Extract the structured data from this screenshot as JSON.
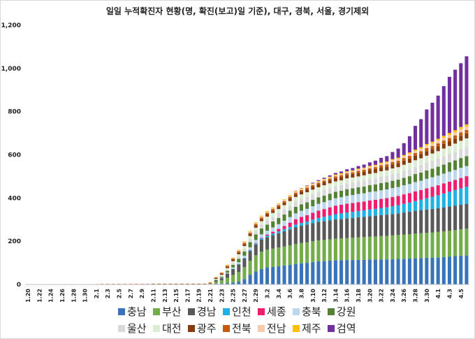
{
  "chart_data": {
    "type": "bar",
    "stacked": true,
    "title": "일일 누적확진자 현황(명, 확진(보고)일 기준), 대구, 경북, 서울, 경기제외",
    "ylim": [
      0,
      1200
    ],
    "yticks": [
      0,
      200,
      400,
      600,
      800,
      1000,
      1200
    ],
    "ytick_labels": [
      "0",
      "200",
      "400",
      "600",
      "800",
      "1,000",
      "1,200"
    ],
    "grid": false,
    "legend_position": "bottom",
    "categories": [
      "1.20",
      "1.21",
      "1.22",
      "1.23",
      "1.24",
      "1.25",
      "1.26",
      "1.27",
      "1.28",
      "1.29",
      "1.30",
      "1.31",
      "2.1",
      "2.2",
      "2.3",
      "2.4",
      "2.5",
      "2.6",
      "2.7",
      "2.8",
      "2.9",
      "2.10",
      "2.11",
      "2.12",
      "2.13",
      "2.14",
      "2.15",
      "2.16",
      "2.17",
      "2.18",
      "2.19",
      "2.20",
      "2.21",
      "2.22",
      "2.23",
      "2.24",
      "2.25",
      "2.26",
      "2.27",
      "2.28",
      "2.29",
      "3.1",
      "3.2",
      "3.3",
      "3.4",
      "3.5",
      "3.6",
      "3.7",
      "3.8",
      "3.9",
      "3.10",
      "3.11",
      "3.12",
      "3.13",
      "3.14",
      "3.15",
      "3.16",
      "3.17",
      "3.18",
      "3.19",
      "3.20",
      "3.21",
      "3.22",
      "3.23",
      "3.24",
      "3.25",
      "3.26",
      "3.27",
      "3.28",
      "3.29",
      "3.30",
      "3.31",
      "4.1",
      "4.2",
      "4.3",
      "4.4",
      "4.5",
      "4.6"
    ],
    "xtick_labels": [
      "1.20",
      "",
      "1.22",
      "",
      "1.24",
      "",
      "1.26",
      "",
      "1.28",
      "",
      "1.30",
      "",
      "2.1",
      "",
      "2.3",
      "",
      "2.5",
      "",
      "2.7",
      "",
      "2.9",
      "",
      "2.11",
      "",
      "2.13",
      "",
      "2.15",
      "",
      "2.17",
      "",
      "2.19",
      "",
      "2.21",
      "",
      "2.23",
      "",
      "2.25",
      "",
      "2.27",
      "",
      "2.29",
      "",
      "3.2",
      "",
      "3.4",
      "",
      "3.6",
      "",
      "3.8",
      "",
      "3.10",
      "",
      "3.12",
      "",
      "3.14",
      "",
      "3.16",
      "",
      "3.18",
      "",
      "3.20",
      "",
      "3.22",
      "",
      "3.24",
      "",
      "3.26",
      "",
      "3.28",
      "",
      "3.30",
      "",
      "4.1",
      "",
      "4.3",
      "",
      "4.5",
      ""
    ],
    "series": [
      {
        "name": "충남",
        "color": "#3a74b8",
        "values": [
          0,
          0,
          0,
          0,
          0,
          0,
          0,
          0,
          0,
          0,
          1,
          1,
          1,
          1,
          1,
          1,
          1,
          1,
          1,
          1,
          1,
          1,
          1,
          1,
          1,
          1,
          1,
          1,
          1,
          1,
          1,
          1,
          2,
          3,
          4,
          6,
          9,
          13,
          25,
          45,
          60,
          72,
          79,
          82,
          85,
          88,
          91,
          95,
          98,
          100,
          104,
          107,
          108,
          110,
          112,
          112,
          113,
          113,
          114,
          114,
          115,
          115,
          116,
          116,
          117,
          118,
          119,
          120,
          121,
          122,
          123,
          124,
          125,
          127,
          129,
          131,
          133,
          135
        ]
      },
      {
        "name": "부산",
        "color": "#72ac4b",
        "values": [
          0,
          0,
          0,
          0,
          0,
          0,
          0,
          0,
          0,
          0,
          0,
          0,
          0,
          0,
          0,
          0,
          0,
          0,
          0,
          0,
          0,
          0,
          0,
          0,
          0,
          0,
          0,
          0,
          0,
          0,
          0,
          0,
          0,
          10,
          15,
          25,
          35,
          45,
          55,
          65,
          75,
          80,
          82,
          84,
          86,
          88,
          90,
          92,
          94,
          95,
          96,
          97,
          98,
          99,
          100,
          101,
          102,
          103,
          104,
          105,
          106,
          107,
          108,
          109,
          110,
          111,
          112,
          113,
          114,
          115,
          116,
          117,
          118,
          119,
          120,
          121,
          122,
          123
        ]
      },
      {
        "name": "경남",
        "color": "#595959",
        "values": [
          0,
          0,
          0,
          0,
          0,
          0,
          0,
          0,
          0,
          0,
          0,
          0,
          0,
          0,
          0,
          0,
          0,
          0,
          0,
          0,
          0,
          0,
          0,
          0,
          0,
          0,
          0,
          0,
          0,
          0,
          0,
          0,
          0,
          5,
          10,
          20,
          28,
          35,
          40,
          45,
          50,
          55,
          58,
          62,
          66,
          70,
          74,
          78,
          80,
          82,
          84,
          86,
          87,
          88,
          89,
          90,
          91,
          92,
          93,
          94,
          95,
          96,
          97,
          98,
          99,
          100,
          102,
          104,
          106,
          107,
          108,
          109,
          110,
          111,
          112,
          113,
          114,
          115
        ]
      },
      {
        "name": "인천",
        "color": "#1fb1e6",
        "values": [
          0,
          0,
          0,
          0,
          0,
          0,
          0,
          0,
          0,
          0,
          0,
          0,
          0,
          0,
          0,
          0,
          0,
          0,
          0,
          0,
          0,
          0,
          0,
          0,
          0,
          0,
          0,
          0,
          0,
          0,
          0,
          0,
          0,
          0,
          0,
          0,
          1,
          2,
          3,
          4,
          5,
          6,
          7,
          8,
          9,
          10,
          11,
          12,
          13,
          14,
          16,
          18,
          20,
          22,
          24,
          26,
          27,
          28,
          29,
          30,
          31,
          32,
          33,
          34,
          36,
          38,
          40,
          42,
          45,
          48,
          52,
          56,
          60,
          64,
          68,
          72,
          76,
          80
        ]
      },
      {
        "name": "세종",
        "color": "#ef1d6e",
        "values": [
          0,
          0,
          0,
          0,
          0,
          0,
          0,
          0,
          0,
          0,
          0,
          0,
          0,
          0,
          0,
          0,
          0,
          0,
          0,
          0,
          0,
          0,
          0,
          0,
          0,
          0,
          0,
          0,
          0,
          0,
          0,
          0,
          0,
          0,
          0,
          0,
          0,
          0,
          0,
          1,
          2,
          3,
          5,
          8,
          11,
          15,
          20,
          25,
          28,
          30,
          32,
          34,
          36,
          38,
          40,
          40,
          41,
          41,
          41,
          41,
          42,
          42,
          42,
          43,
          43,
          43,
          44,
          44,
          45,
          45,
          46,
          46,
          46,
          47,
          47,
          47,
          48,
          48
        ]
      },
      {
        "name": "충북",
        "color": "#bdd7ee",
        "values": [
          0,
          0,
          0,
          0,
          0,
          0,
          0,
          0,
          0,
          0,
          0,
          0,
          0,
          0,
          0,
          0,
          0,
          0,
          0,
          0,
          0,
          0,
          0,
          0,
          0,
          0,
          0,
          0,
          0,
          0,
          0,
          0,
          0,
          0,
          2,
          4,
          6,
          8,
          10,
          12,
          14,
          16,
          18,
          20,
          22,
          24,
          26,
          27,
          28,
          29,
          30,
          31,
          32,
          33,
          34,
          35,
          36,
          37,
          38,
          38,
          39,
          39,
          40,
          40,
          41,
          41,
          42,
          42,
          43,
          43,
          44,
          44,
          45,
          45,
          46,
          46,
          47,
          47
        ]
      },
      {
        "name": "강원",
        "color": "#548235",
        "values": [
          0,
          0,
          0,
          0,
          0,
          0,
          0,
          0,
          0,
          0,
          0,
          0,
          0,
          0,
          0,
          0,
          0,
          0,
          0,
          0,
          0,
          0,
          0,
          0,
          0,
          0,
          0,
          0,
          0,
          0,
          0,
          0,
          1,
          3,
          5,
          8,
          12,
          16,
          20,
          24,
          26,
          27,
          28,
          28,
          29,
          29,
          30,
          30,
          30,
          30,
          30,
          30,
          30,
          30,
          30,
          30,
          31,
          31,
          31,
          31,
          32,
          32,
          33,
          33,
          34,
          34,
          35,
          36,
          37,
          38,
          39,
          40,
          41,
          42,
          43,
          44,
          45,
          46
        ]
      },
      {
        "name": "울산",
        "color": "#d9d9d9",
        "values": [
          0,
          0,
          0,
          0,
          0,
          0,
          0,
          0,
          0,
          0,
          0,
          0,
          0,
          0,
          0,
          0,
          0,
          0,
          0,
          0,
          0,
          0,
          0,
          0,
          0,
          0,
          0,
          0,
          0,
          0,
          0,
          0,
          0,
          2,
          4,
          6,
          8,
          10,
          12,
          14,
          16,
          18,
          20,
          21,
          22,
          23,
          23,
          24,
          24,
          25,
          25,
          25,
          26,
          26,
          26,
          26,
          27,
          27,
          27,
          28,
          28,
          28,
          29,
          29,
          30,
          30,
          31,
          32,
          33,
          34,
          35,
          36,
          37,
          38,
          39,
          40,
          41,
          42
        ]
      },
      {
        "name": "대전",
        "color": "#dbeed4",
        "values": [
          0,
          0,
          0,
          0,
          0,
          0,
          0,
          0,
          0,
          0,
          0,
          0,
          0,
          0,
          0,
          0,
          0,
          0,
          0,
          0,
          0,
          0,
          0,
          0,
          0,
          0,
          0,
          0,
          0,
          0,
          0,
          0,
          1,
          3,
          5,
          7,
          9,
          11,
          13,
          14,
          15,
          16,
          17,
          18,
          19,
          20,
          21,
          22,
          22,
          22,
          22,
          22,
          22,
          22,
          22,
          22,
          23,
          23,
          23,
          24,
          24,
          25,
          26,
          26,
          27,
          28,
          29,
          30,
          31,
          32,
          33,
          34,
          35,
          36,
          37,
          38,
          39,
          40
        ]
      },
      {
        "name": "광주",
        "color": "#843c0c",
        "values": [
          0,
          0,
          0,
          0,
          0,
          0,
          0,
          0,
          0,
          0,
          0,
          0,
          0,
          1,
          1,
          1,
          1,
          1,
          1,
          1,
          1,
          1,
          2,
          2,
          2,
          2,
          2,
          2,
          2,
          2,
          2,
          2,
          3,
          4,
          5,
          6,
          7,
          8,
          9,
          9,
          10,
          10,
          11,
          11,
          12,
          12,
          13,
          13,
          13,
          14,
          14,
          14,
          15,
          15,
          15,
          16,
          16,
          16,
          17,
          17,
          17,
          18,
          18,
          18,
          19,
          19,
          19,
          20,
          20,
          20,
          21,
          21,
          22,
          22,
          22,
          23,
          23,
          23
        ]
      },
      {
        "name": "전북",
        "color": "#c55a11",
        "values": [
          0,
          0,
          0,
          0,
          0,
          0,
          0,
          0,
          0,
          0,
          0,
          0,
          1,
          1,
          1,
          1,
          1,
          1,
          1,
          1,
          1,
          1,
          1,
          1,
          1,
          1,
          1,
          1,
          1,
          1,
          1,
          1,
          2,
          3,
          4,
          5,
          5,
          6,
          6,
          7,
          7,
          7,
          7,
          7,
          7,
          7,
          7,
          7,
          7,
          7,
          7,
          7,
          7,
          7,
          8,
          8,
          8,
          8,
          9,
          9,
          9,
          9,
          10,
          10,
          11,
          11,
          12,
          12,
          13,
          13,
          14,
          14,
          14,
          15,
          15,
          15,
          16,
          16
        ]
      },
      {
        "name": "전남",
        "color": "#f8cbad",
        "values": [
          0,
          0,
          0,
          0,
          0,
          0,
          0,
          0,
          0,
          0,
          0,
          0,
          0,
          1,
          1,
          1,
          1,
          1,
          1,
          1,
          1,
          1,
          1,
          1,
          1,
          1,
          1,
          1,
          1,
          1,
          1,
          1,
          1,
          2,
          2,
          3,
          3,
          4,
          4,
          5,
          5,
          5,
          5,
          5,
          5,
          5,
          5,
          5,
          5,
          5,
          5,
          5,
          5,
          5,
          5,
          5,
          5,
          5,
          6,
          6,
          7,
          7,
          7,
          8,
          8,
          9,
          9,
          10,
          10,
          11,
          12,
          12,
          13,
          13,
          14,
          14,
          15,
          15
        ]
      },
      {
        "name": "제주",
        "color": "#ffc000",
        "values": [
          0,
          0,
          0,
          0,
          0,
          0,
          0,
          0,
          0,
          0,
          0,
          0,
          0,
          0,
          0,
          0,
          0,
          0,
          0,
          0,
          0,
          0,
          0,
          0,
          0,
          0,
          0,
          0,
          0,
          0,
          0,
          0,
          1,
          1,
          1,
          2,
          2,
          3,
          3,
          3,
          3,
          3,
          3,
          3,
          3,
          3,
          3,
          3,
          3,
          3,
          3,
          3,
          3,
          4,
          4,
          4,
          4,
          4,
          4,
          4,
          4,
          4,
          5,
          5,
          5,
          5,
          5,
          6,
          6,
          7,
          7,
          8,
          8,
          9,
          9,
          10,
          10,
          11
        ]
      },
      {
        "name": "검역",
        "color": "#7030a0",
        "values": [
          0,
          0,
          0,
          0,
          0,
          0,
          0,
          0,
          0,
          0,
          0,
          0,
          0,
          0,
          0,
          0,
          0,
          0,
          0,
          0,
          0,
          0,
          0,
          0,
          0,
          0,
          0,
          0,
          0,
          0,
          0,
          0,
          0,
          0,
          0,
          0,
          0,
          0,
          0,
          0,
          0,
          0,
          0,
          0,
          0,
          0,
          0,
          1,
          1,
          2,
          3,
          4,
          5,
          6,
          7,
          8,
          9,
          11,
          12,
          14,
          16,
          19,
          22,
          25,
          33,
          42,
          55,
          75,
          110,
          130,
          160,
          180,
          200,
          230,
          260,
          280,
          295,
          315
        ]
      }
    ]
  }
}
